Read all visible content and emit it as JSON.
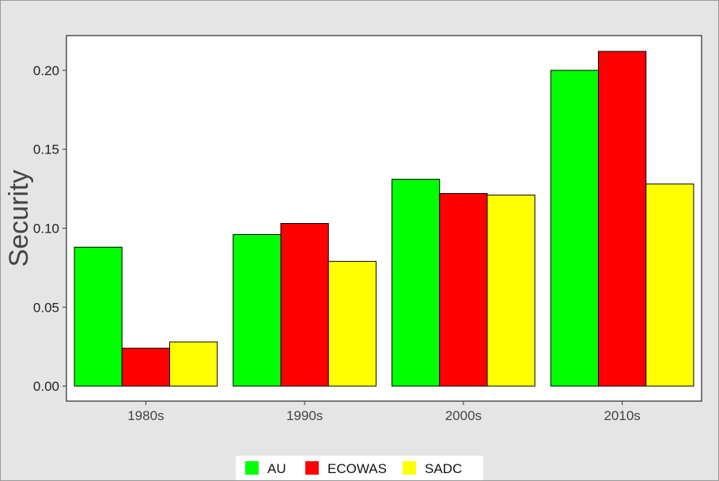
{
  "chart_data": {
    "type": "bar",
    "categories": [
      "1980s",
      "1990s",
      "2000s",
      "2010s"
    ],
    "series": [
      {
        "name": "AU",
        "color": "#00ff00",
        "values": [
          0.088,
          0.096,
          0.131,
          0.2
        ]
      },
      {
        "name": "ECOWAS",
        "color": "#ff0000",
        "values": [
          0.024,
          0.103,
          0.122,
          0.212
        ]
      },
      {
        "name": "SADC",
        "color": "#ffff00",
        "values": [
          0.028,
          0.079,
          0.121,
          0.128
        ]
      }
    ],
    "title": "",
    "xlabel": "",
    "ylabel": "Security",
    "ylim": [
      -0.0095,
      0.222
    ],
    "yticks": [
      0.0,
      0.05,
      0.1,
      0.15,
      0.2
    ],
    "ytick_labels": [
      "0.00",
      "0.05",
      "0.10",
      "0.15",
      "0.20"
    ],
    "grid": false,
    "legend_position": "bottom",
    "panel_background": "#ffffff",
    "page_background": "#e5e5e5"
  }
}
